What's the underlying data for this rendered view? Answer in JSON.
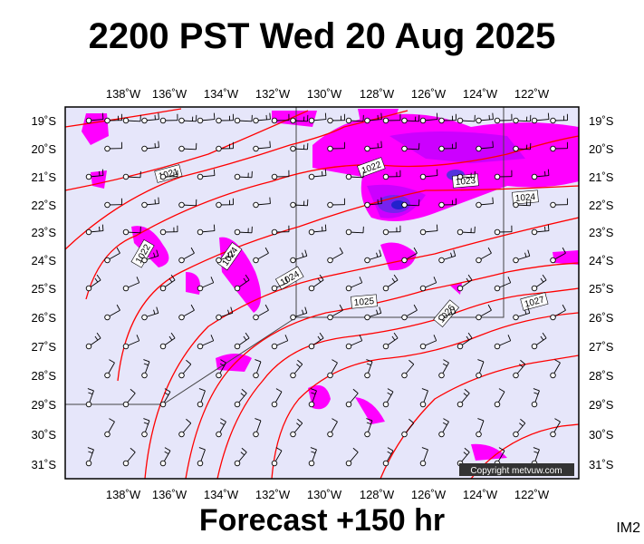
{
  "title": "2200 PST Wed 20 Aug 2025",
  "footer": "Forecast +150 hr",
  "image_code": "IM2",
  "copyright": "Copyright metvuw.com",
  "lon_labels": [
    "138˚W",
    "136˚W",
    "134˚W",
    "132˚W",
    "130˚W",
    "128˚W",
    "126˚W",
    "124˚W",
    "122˚W"
  ],
  "lat_labels": [
    "19˚S",
    "20˚S",
    "21˚S",
    "22˚S",
    "23˚S",
    "24˚S",
    "25˚S",
    "26˚S",
    "27˚S",
    "28˚S",
    "29˚S",
    "30˚S",
    "31˚S"
  ],
  "isobar_labels": [
    "1021",
    "1022",
    "1022",
    "1023",
    "1024",
    "1022",
    "1023",
    "1024",
    "1025",
    "1026",
    "1027"
  ],
  "colors": {
    "background": "#e6e6fa",
    "isobar": "#ff0000",
    "precip_light": "#ff00ff",
    "precip_mid": "#cc00ff",
    "precip_heavy": "#2222cc"
  }
}
